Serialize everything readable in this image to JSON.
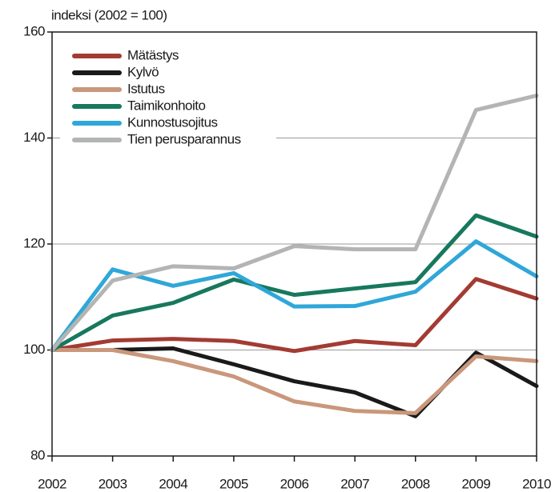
{
  "chart_data": {
    "type": "line",
    "y_axis_label": "indeksi (2002 = 100)",
    "x": [
      2002,
      2003,
      2004,
      2005,
      2006,
      2007,
      2008,
      2009,
      2010
    ],
    "xlim": [
      2002,
      2010
    ],
    "xticks": [
      2002,
      2003,
      2004,
      2005,
      2006,
      2007,
      2008,
      2009,
      2010
    ],
    "ylim": [
      80,
      160
    ],
    "yticks": [
      80,
      100,
      120,
      140,
      160
    ],
    "grid": true,
    "legend": "upper left",
    "series": [
      {
        "name": "Mätästys",
        "color": "#a33b33",
        "values": [
          100,
          101.8,
          102.1,
          101.7,
          99.8,
          101.7,
          100.9,
          113.4,
          109.7
        ]
      },
      {
        "name": "Kylvö",
        "color": "#1a1a1a",
        "values": [
          100,
          100,
          100.3,
          97.3,
          94.1,
          92.0,
          87.5,
          99.5,
          93.2
        ]
      },
      {
        "name": "Istutus",
        "color": "#c9977b",
        "values": [
          100,
          100,
          97.9,
          95.0,
          90.3,
          88.5,
          88.1,
          98.8,
          97.9
        ]
      },
      {
        "name": "Taimikonhoito",
        "color": "#17785d",
        "values": [
          100,
          106.5,
          108.9,
          113.3,
          110.4,
          111.6,
          112.8,
          125.4,
          121.4
        ]
      },
      {
        "name": "Kunnostusojitus",
        "color": "#2fa7d8",
        "values": [
          100,
          115.2,
          112.1,
          114.5,
          108.2,
          108.3,
          111.0,
          120.5,
          113.9
        ]
      },
      {
        "name": "Tien perusparannus",
        "color": "#b2b5b4",
        "values": [
          100,
          113.1,
          115.8,
          115.4,
          119.6,
          119.0,
          119.0,
          145.3,
          148.0
        ]
      }
    ]
  }
}
